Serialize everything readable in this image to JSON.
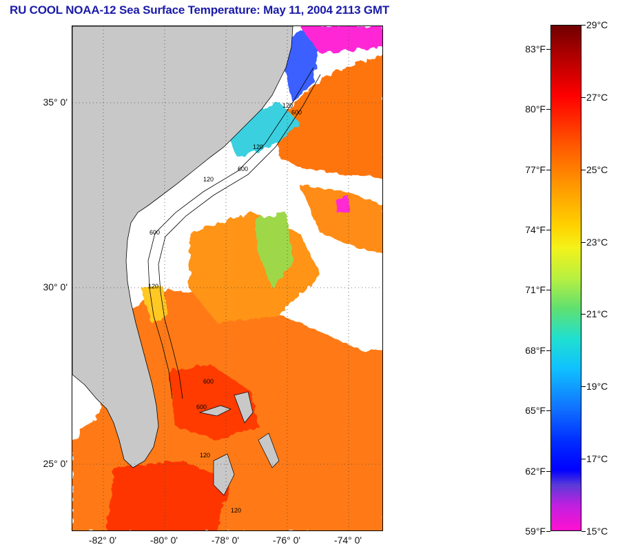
{
  "title": "RU COOL  NOAA-12  Sea Surface Temperature:  May 11, 2004 2113 GMT",
  "map": {
    "lat_labels": [
      "35° 0'",
      "30° 0'",
      "25° 0'"
    ],
    "lon_labels": [
      "-82° 0'",
      "-80° 0'",
      "-78° 0'",
      "-76° 0'",
      "-74° 0'"
    ],
    "contour_labels": [
      "120",
      "600",
      "120",
      "600",
      "120",
      "600",
      "120",
      "600",
      "120",
      "600",
      "120"
    ],
    "colors": {
      "land": "#c8c8c8",
      "cloud": "#ffffff",
      "warm": "#ff6a00",
      "hot": "#ff2a00",
      "orange": "#ff9a10",
      "yellow": "#ffd21a",
      "green": "#8fe03a",
      "cyan": "#27c9e8",
      "blue": "#2a50ff",
      "magenta": "#ff1ad0"
    }
  },
  "colorbar": {
    "fahrenheit_labels": [
      "83°F",
      "80°F",
      "77°F",
      "74°F",
      "71°F",
      "68°F",
      "65°F",
      "62°F",
      "59°F"
    ],
    "celsius_labels": [
      "29°C",
      "27°C",
      "25°C",
      "23°C",
      "21°C",
      "19°C",
      "17°C",
      "15°C"
    ],
    "fahrenheit_values": [
      83,
      80,
      77,
      74,
      71,
      68,
      65,
      62,
      59
    ],
    "celsius_values": [
      29,
      27,
      25,
      23,
      21,
      19,
      17,
      15
    ],
    "range_c": [
      15,
      29
    ]
  }
}
